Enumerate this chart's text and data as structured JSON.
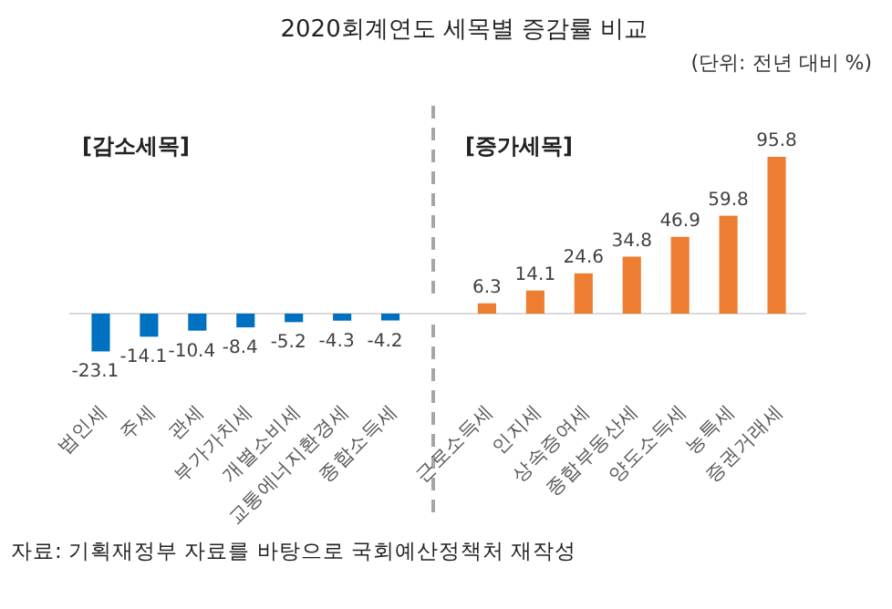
{
  "chart_data": {
    "type": "bar",
    "title": "2020회계연도 세목별 증감률 비교",
    "subtitle": "(단위: 전년 대비 %)",
    "categories": [
      "법인세",
      "주세",
      "관세",
      "부가가치세",
      "개별소비세",
      "교통에너지환경세",
      "종합소득세",
      null,
      "근로소득세",
      "인지세",
      "상속증여세",
      "종합부동산세",
      "양도소득세",
      "농특세",
      "증권거래세"
    ],
    "values": [
      -23.1,
      -14.1,
      -10.4,
      -8.4,
      -5.2,
      -4.3,
      -4.2,
      null,
      6.3,
      14.1,
      24.6,
      34.8,
      46.9,
      59.8,
      95.8
    ],
    "colors": [
      "#0070c0",
      "#0070c0",
      "#0070c0",
      "#0070c0",
      "#0070c0",
      "#0070c0",
      "#0070c0",
      null,
      "#ed7d31",
      "#ed7d31",
      "#ed7d31",
      "#ed7d31",
      "#ed7d31",
      "#ed7d31",
      "#ed7d31"
    ],
    "data_labels": true,
    "tick_labels": "x",
    "annotations": [
      "[감소세목]",
      "[증가세목]",
      "자료: 기획재정부 자료를 바탕으로 국회예산정책처 재작성"
    ]
  }
}
